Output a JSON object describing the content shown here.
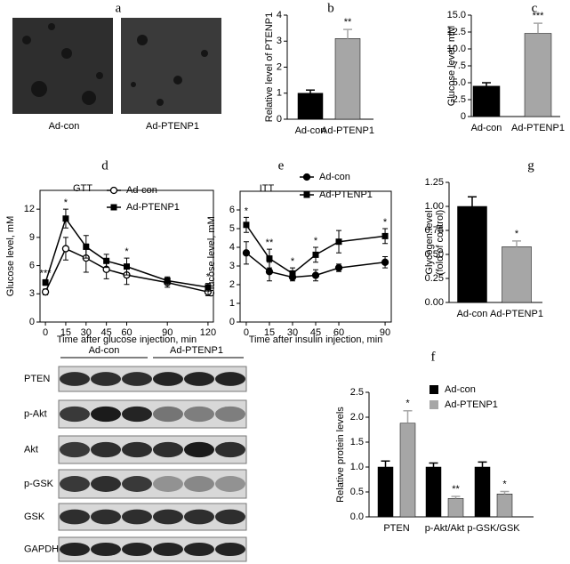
{
  "micrographs": {
    "panel": "a",
    "labels": [
      "Ad-con",
      "Ad-PTENP1"
    ]
  },
  "western_blot": {
    "groups": [
      "Ad-con",
      "Ad-PTENP1"
    ],
    "rows": [
      "PTEN",
      "p-Akt",
      "Akt",
      "p-GSK",
      "GSK",
      "GAPDH"
    ]
  },
  "chart_data": [
    {
      "type": "bar",
      "panel": "b",
      "ylabel": "Relative level of PTENP1",
      "categories": [
        "Ad-con",
        "Ad-PTENP1"
      ],
      "values": [
        1.0,
        3.1
      ],
      "errors": [
        0.12,
        0.35
      ],
      "colors": [
        "#000000",
        "#a6a6a6"
      ],
      "significance": [
        null,
        "**"
      ],
      "ylim": [
        0,
        4
      ],
      "yticks": [
        0,
        1,
        2,
        3,
        4
      ]
    },
    {
      "type": "bar",
      "panel": "c",
      "ylabel": "Glucose level, mM",
      "categories": [
        "Ad-con",
        "Ad-PTENP1"
      ],
      "values": [
        4.5,
        12.3
      ],
      "errors": [
        0.5,
        1.5
      ],
      "colors": [
        "#000000",
        "#a6a6a6"
      ],
      "significance": [
        null,
        "***"
      ],
      "ylim": [
        0,
        15
      ],
      "yticks": [
        0,
        2.5,
        {
          "value": 5,
          "label": "5.0"
        },
        7.5,
        {
          "value": 10,
          "label": "10.0"
        },
        12.5,
        {
          "value": 15,
          "label": "15.0"
        }
      ]
    },
    {
      "type": "line",
      "panel": "d",
      "annotation": "GTT",
      "xlabel": "Time after glucose injection, min",
      "ylabel": "Glucose level, mM",
      "x": [
        0,
        15,
        30,
        45,
        60,
        90,
        120
      ],
      "series": [
        {
          "name": "Ad-con",
          "color": "#000000",
          "marker": "open-circle",
          "values": [
            3.2,
            7.8,
            6.8,
            5.6,
            5.0,
            4.2,
            3.2
          ],
          "errors": [
            0.3,
            1.2,
            1.5,
            1.0,
            1.0,
            0.5,
            0.4
          ]
        },
        {
          "name": "Ad-PTENP1",
          "color": "#000000",
          "marker": "filled-square",
          "values": [
            4.2,
            11.0,
            8.0,
            6.5,
            5.9,
            4.4,
            3.7
          ],
          "errors": [
            0.3,
            1.0,
            1.2,
            0.7,
            0.9,
            0.4,
            0.4
          ]
        }
      ],
      "significance": [
        "***",
        "*",
        null,
        null,
        "*",
        null,
        "*"
      ],
      "xlim": [
        -4,
        124
      ],
      "xticks": [
        0,
        15,
        30,
        45,
        60,
        90,
        120
      ],
      "ylim": [
        0,
        14
      ],
      "yticks": [
        0,
        3,
        6,
        9,
        12
      ]
    },
    {
      "type": "line",
      "panel": "e",
      "annotation": "ITT",
      "xlabel": "Time after insulin injection, min",
      "ylabel": "Glucose level, mM",
      "x": [
        0,
        15,
        30,
        45,
        60,
        90
      ],
      "series": [
        {
          "name": "Ad-con",
          "color": "#000000",
          "marker": "filled-circle",
          "values": [
            3.7,
            2.7,
            2.4,
            2.5,
            2.9,
            3.2
          ],
          "errors": [
            0.6,
            0.5,
            0.2,
            0.3,
            0.2,
            0.3
          ]
        },
        {
          "name": "Ad-PTENP1",
          "color": "#000000",
          "marker": "filled-square",
          "values": [
            5.2,
            3.4,
            2.6,
            3.6,
            4.3,
            4.6
          ],
          "errors": [
            0.4,
            0.5,
            0.3,
            0.4,
            0.6,
            0.4
          ]
        }
      ],
      "significance": [
        "*",
        "**",
        "*",
        "*",
        null,
        "*"
      ],
      "xlim": [
        -4,
        94
      ],
      "xticks": [
        0,
        15,
        30,
        45,
        60,
        90
      ],
      "ylim": [
        0,
        7
      ],
      "yticks": [
        0,
        1,
        2,
        3,
        4,
        5,
        6
      ]
    },
    {
      "type": "bar",
      "panel": "g",
      "ylabel": [
        "Glycogen level",
        "(fold of control)"
      ],
      "categories": [
        "Ad-con",
        "Ad-PTENP1"
      ],
      "values": [
        1.0,
        0.58
      ],
      "errors": [
        0.1,
        0.06
      ],
      "colors": [
        "#000000",
        "#a6a6a6"
      ],
      "significance": [
        null,
        "*"
      ],
      "ylim": [
        0,
        1.25
      ],
      "yticks": [
        {
          "value": 0,
          "label": "0.00"
        },
        0.25,
        {
          "value": 0.5,
          "label": "0.50"
        },
        0.75,
        {
          "value": 1,
          "label": "1.00"
        },
        1.25
      ]
    },
    {
      "type": "bar",
      "panel": "f",
      "ylabel": "Relative protein levels",
      "categories": [
        "PTEN",
        "p-Akt/Akt",
        "p-GSK/GSK"
      ],
      "series": [
        {
          "name": "Ad-con",
          "color": "#000000",
          "values": [
            1.0,
            1.0,
            1.0
          ],
          "errors": [
            0.12,
            0.08,
            0.1
          ],
          "significance": [
            null,
            null,
            null
          ]
        },
        {
          "name": "Ad-PTENP1",
          "color": "#a6a6a6",
          "values": [
            1.88,
            0.37,
            0.46
          ],
          "errors": [
            0.25,
            0.04,
            0.05
          ],
          "significance": [
            "*",
            "**",
            "*"
          ]
        }
      ],
      "ylim": [
        0,
        2.5
      ],
      "yticks": [
        {
          "value": 0,
          "label": "0.0"
        },
        0.5,
        {
          "value": 1,
          "label": "1.0"
        },
        1.5,
        {
          "value": 2,
          "label": "2.0"
        },
        2.5
      ]
    }
  ]
}
